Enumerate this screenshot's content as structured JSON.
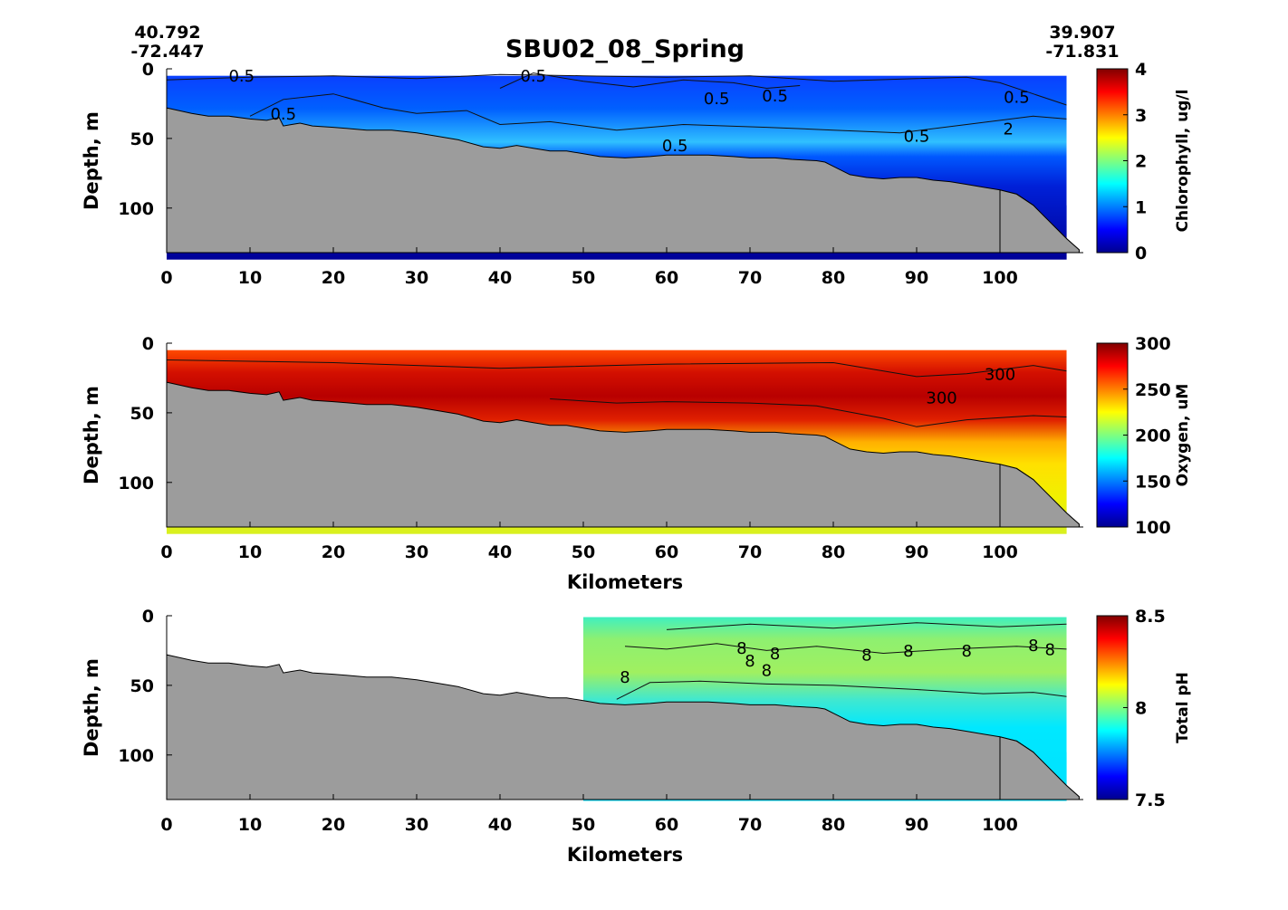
{
  "title": "SBU02_08_Spring",
  "start_coord": {
    "lat": "40.792",
    "lon": "-72.447"
  },
  "end_coord": {
    "lat": "39.907",
    "lon": "-71.831"
  },
  "colors": {
    "seafloor": "#9c9c9c",
    "axis": "#000000"
  },
  "chart_data": [
    {
      "type": "heatmap",
      "name": "chlorophyll",
      "xlabel": "",
      "ylabel": "Depth, m",
      "xlim": [
        0,
        110
      ],
      "ylim": [
        0,
        132
      ],
      "x_ticks": [
        "0",
        "10",
        "20",
        "30",
        "40",
        "50",
        "60",
        "70",
        "80",
        "90",
        "100"
      ],
      "y_ticks": [
        "0",
        "50",
        "100"
      ],
      "colorbar": {
        "label": "Chlorophyll, ug/l",
        "range": [
          0,
          4
        ],
        "ticks": [
          "0",
          "1",
          "2",
          "3",
          "4"
        ],
        "colormap": "jet"
      },
      "data_x_range": [
        0,
        108
      ],
      "contour_labels": [
        "0.5",
        "0.5",
        "0.5",
        "0.5",
        "0.5",
        "0.5",
        "0.5",
        "0.5",
        "2"
      ]
    },
    {
      "type": "heatmap",
      "name": "oxygen",
      "xlabel": "Kilometers",
      "ylabel": "Depth, m",
      "xlim": [
        0,
        110
      ],
      "ylim": [
        0,
        132
      ],
      "x_ticks": [
        "0",
        "10",
        "20",
        "30",
        "40",
        "50",
        "60",
        "70",
        "80",
        "90",
        "100"
      ],
      "y_ticks": [
        "0",
        "50",
        "100"
      ],
      "colorbar": {
        "label": "Oxygen, uM",
        "range": [
          100,
          300
        ],
        "ticks": [
          "100",
          "150",
          "200",
          "250",
          "300"
        ],
        "colormap": "jet"
      },
      "data_x_range": [
        0,
        108
      ],
      "contour_labels": [
        "300",
        "300"
      ]
    },
    {
      "type": "heatmap",
      "name": "ph",
      "xlabel": "Kilometers",
      "ylabel": "Depth, m",
      "xlim": [
        0,
        110
      ],
      "ylim": [
        0,
        132
      ],
      "x_ticks": [
        "0",
        "10",
        "20",
        "30",
        "40",
        "50",
        "60",
        "70",
        "80",
        "90",
        "100"
      ],
      "y_ticks": [
        "0",
        "50",
        "100"
      ],
      "colorbar": {
        "label": "Total pH",
        "range": [
          7.5,
          8.5
        ],
        "ticks": [
          "7.5",
          "8",
          "8.5"
        ],
        "colormap": "jet"
      },
      "data_x_range": [
        50,
        108
      ],
      "contour_labels": [
        "8",
        "8",
        "8",
        "8",
        "8",
        "8",
        "8",
        "8",
        "8",
        "8"
      ]
    }
  ],
  "bathymetry": {
    "km": [
      0,
      3,
      5,
      7.5,
      10,
      12,
      13.5,
      14,
      15,
      16,
      17.5,
      20,
      22,
      24,
      27,
      30,
      32,
      35,
      38,
      40,
      42,
      44,
      46,
      48,
      50,
      52,
      55,
      58,
      60,
      62,
      65,
      68,
      70,
      73,
      75,
      78,
      79,
      80,
      82,
      84,
      86,
      88,
      90,
      92,
      94,
      96,
      98,
      100,
      102,
      104,
      106,
      108,
      109.5
    ],
    "depth": [
      28,
      32,
      34,
      34,
      36,
      37,
      35,
      41,
      40,
      39,
      41,
      42,
      43,
      44,
      44,
      46,
      48,
      51,
      56,
      57,
      55,
      57,
      59,
      59,
      61,
      63,
      64,
      63,
      62,
      62,
      62,
      63,
      64,
      64,
      65,
      66,
      67,
      70,
      76,
      78,
      79,
      78,
      78,
      80,
      81,
      83,
      85,
      87,
      90,
      98,
      110,
      122,
      130
    ]
  }
}
